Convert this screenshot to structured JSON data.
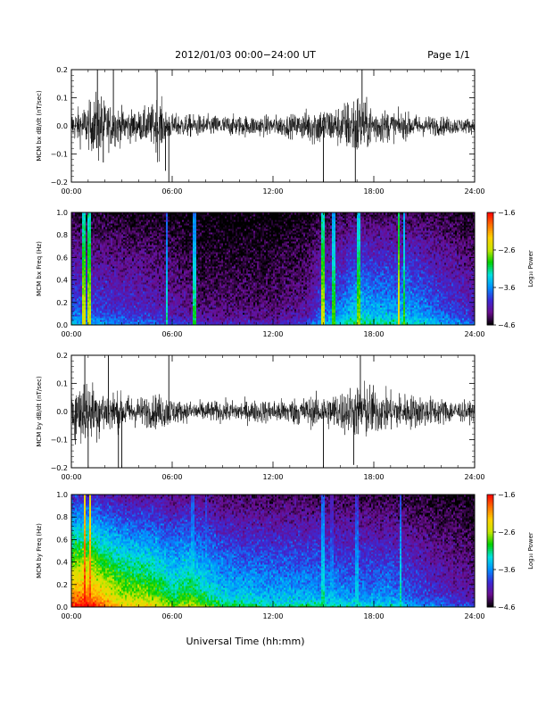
{
  "header": {
    "title": "2012/01/03  00:00−24:00 UT",
    "page": "Page 1/1"
  },
  "xlabel": "Universal Time (hh:mm)",
  "chart_data": [
    {
      "type": "line",
      "ylabel": "MCM bx dB/dt (nT/sec)",
      "xlim": [
        0,
        24
      ],
      "ylim": [
        -0.2,
        0.2
      ],
      "x_ticks": [
        "00:00",
        "06:00",
        "12:00",
        "18:00",
        "24:00"
      ],
      "y_ticks": [
        "−0.2",
        "−0.1",
        "0.0",
        "0.1",
        "0.2"
      ],
      "amplitude_profile": [
        [
          0,
          0.05
        ],
        [
          0.8,
          0.07
        ],
        [
          1.3,
          0.09
        ],
        [
          1.6,
          0.13
        ],
        [
          2,
          0.08
        ],
        [
          3,
          0.06
        ],
        [
          4,
          0.05
        ],
        [
          4.8,
          0.07
        ],
        [
          5.2,
          0.11
        ],
        [
          5.5,
          0.06
        ],
        [
          6,
          0.04
        ],
        [
          9,
          0.035
        ],
        [
          12,
          0.035
        ],
        [
          13.5,
          0.04
        ],
        [
          14.5,
          0.07
        ],
        [
          15.5,
          0.06
        ],
        [
          16.5,
          0.09
        ],
        [
          17,
          0.12
        ],
        [
          17.5,
          0.08
        ],
        [
          19,
          0.05
        ],
        [
          21,
          0.035
        ],
        [
          24,
          0.025
        ]
      ],
      "spikes": [
        [
          1.55,
          0.2
        ],
        [
          1.9,
          -0.13
        ],
        [
          2.5,
          0.2
        ],
        [
          5.1,
          0.2
        ],
        [
          5.6,
          -0.16
        ],
        [
          5.8,
          -0.2
        ],
        [
          15,
          -0.2
        ],
        [
          16.9,
          -0.2
        ],
        [
          17.3,
          0.2
        ]
      ]
    },
    {
      "type": "heatmap",
      "ylabel": "MCM bx Freq (Hz)",
      "xlim": [
        0,
        24
      ],
      "ylim": [
        0,
        1.0
      ],
      "x_ticks": [
        "00:00",
        "06:00",
        "12:00",
        "18:00",
        "24:00"
      ],
      "y_ticks": [
        "0.0",
        "0.2",
        "0.4",
        "0.6",
        "0.8",
        "1.0"
      ],
      "colorbar_label": "Log₁₀ Power",
      "colorbar_ticks": [
        "−1.6",
        "−2.6",
        "−3.6",
        "−4.6"
      ],
      "clim": [
        -4.6,
        -1.6
      ],
      "vertical_lines": [
        [
          0.75,
          0.7
        ],
        [
          1.05,
          0.7
        ],
        [
          5.7,
          0.5
        ],
        [
          7.3,
          0.55
        ],
        [
          15,
          0.7
        ],
        [
          15.6,
          0.6
        ],
        [
          17.1,
          0.65
        ],
        [
          19.5,
          0.75
        ],
        [
          19.8,
          0.6
        ]
      ],
      "activity_profile": [
        [
          0,
          0.35
        ],
        [
          2,
          0.3
        ],
        [
          5,
          0.25
        ],
        [
          8,
          0.15
        ],
        [
          12,
          0.15
        ],
        [
          14,
          0.2
        ],
        [
          15,
          0.35
        ],
        [
          16,
          0.4
        ],
        [
          17,
          0.5
        ],
        [
          18,
          0.45
        ],
        [
          20,
          0.45
        ],
        [
          22,
          0.35
        ],
        [
          24,
          0.25
        ]
      ]
    },
    {
      "type": "line",
      "ylabel": "MCM by dB/dt (nT/sec)",
      "xlim": [
        0,
        24
      ],
      "ylim": [
        -0.2,
        0.2
      ],
      "x_ticks": [
        "00:00",
        "06:00",
        "12:00",
        "18:00",
        "24:00"
      ],
      "y_ticks": [
        "−0.2",
        "−0.1",
        "0.0",
        "0.1",
        "0.2"
      ],
      "amplitude_profile": [
        [
          0,
          0.08
        ],
        [
          0.7,
          0.12
        ],
        [
          1.2,
          0.1
        ],
        [
          2,
          0.08
        ],
        [
          3,
          0.06
        ],
        [
          4,
          0.05
        ],
        [
          5.5,
          0.06
        ],
        [
          6.5,
          0.035
        ],
        [
          9,
          0.035
        ],
        [
          12,
          0.04
        ],
        [
          14,
          0.05
        ],
        [
          15.5,
          0.06
        ],
        [
          17,
          0.09
        ],
        [
          17.5,
          0.1
        ],
        [
          18.5,
          0.07
        ],
        [
          20,
          0.06
        ],
        [
          22,
          0.045
        ],
        [
          24,
          0.03
        ]
      ],
      "spikes": [
        [
          0.8,
          0.2
        ],
        [
          1.0,
          -0.2
        ],
        [
          2.2,
          0.2
        ],
        [
          2.8,
          -0.2
        ],
        [
          3.0,
          -0.2
        ],
        [
          5.8,
          0.2
        ],
        [
          15,
          -0.2
        ],
        [
          16.8,
          -0.19
        ],
        [
          17.2,
          0.2
        ]
      ]
    },
    {
      "type": "heatmap",
      "ylabel": "MCM by Freq (Hz)",
      "xlim": [
        0,
        24
      ],
      "ylim": [
        0,
        1.0
      ],
      "x_ticks": [
        "00:00",
        "06:00",
        "12:00",
        "18:00",
        "24:00"
      ],
      "y_ticks": [
        "0.0",
        "0.2",
        "0.4",
        "0.6",
        "0.8",
        "1.0"
      ],
      "colorbar_label": "Log₁₀ Power",
      "colorbar_ticks": [
        "−1.6",
        "−2.6",
        "−3.6",
        "−4.6"
      ],
      "clim": [
        -4.6,
        -1.6
      ],
      "vertical_lines": [
        [
          0.8,
          1.0
        ],
        [
          1.1,
          0.95
        ],
        [
          7.2,
          0.5
        ],
        [
          8.0,
          0.45
        ],
        [
          15,
          0.5
        ],
        [
          15.5,
          0.4
        ],
        [
          17,
          0.45
        ],
        [
          19.6,
          0.5
        ]
      ],
      "activity_profile": [
        [
          0,
          0.95
        ],
        [
          1,
          1.0
        ],
        [
          2,
          0.85
        ],
        [
          3,
          0.75
        ],
        [
          5,
          0.7
        ],
        [
          6,
          0.6
        ],
        [
          7,
          0.65
        ],
        [
          9,
          0.5
        ],
        [
          12,
          0.45
        ],
        [
          15,
          0.45
        ],
        [
          17,
          0.4
        ],
        [
          19,
          0.4
        ],
        [
          21,
          0.3
        ],
        [
          24,
          0.2
        ]
      ]
    }
  ],
  "colors": {
    "trace": "#000000",
    "colorbar_stops": [
      "#000000",
      "#6a0d8f",
      "#3a2ad6",
      "#0090ff",
      "#00e0e0",
      "#00d000",
      "#c8e600",
      "#ffd000",
      "#ff7000",
      "#ff0000"
    ]
  }
}
